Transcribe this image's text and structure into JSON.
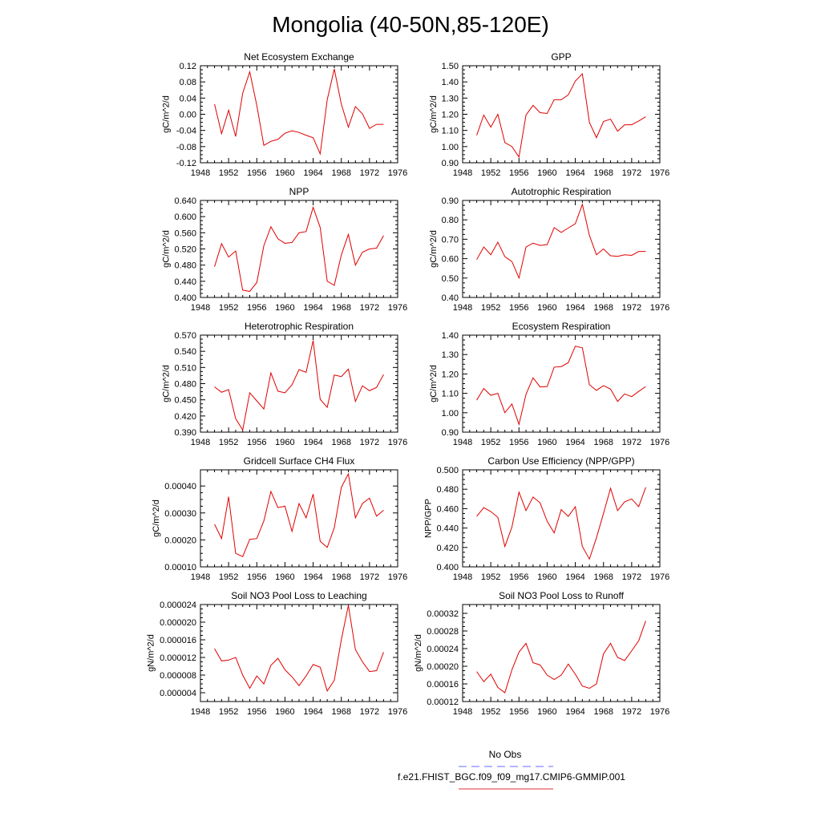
{
  "figure": {
    "title": "Mongolia (40-50N,85-120E)",
    "legend": [
      {
        "label": "No Obs",
        "color": "#6a6aff",
        "dashed": true
      },
      {
        "label": "f.e21.FHIST_BGC.f09_f09_mg17.CMIP6-GMMIP.001",
        "color": "#e03030",
        "dashed": false
      }
    ]
  },
  "chart_data": [
    {
      "type": "line",
      "title": "Net Ecosystem Exchange",
      "ylabel": "gC/m^2/d",
      "xlim": [
        1948,
        1976
      ],
      "xticks": [
        1948,
        1952,
        1956,
        1960,
        1964,
        1968,
        1972,
        1976
      ],
      "ylim": [
        -0.12,
        0.12
      ],
      "yticks": [
        "-0.12",
        "-0.08",
        "-0.04",
        "0.00",
        "0.04",
        "0.08",
        "0.12"
      ],
      "series": [
        {
          "color": "#e00000",
          "x": [
            1950,
            1951,
            1952,
            1953,
            1954,
            1955,
            1956,
            1957,
            1958,
            1959,
            1960,
            1961,
            1962,
            1963,
            1964,
            1965,
            1966,
            1967,
            1968,
            1969,
            1970,
            1971,
            1972,
            1973,
            1974
          ],
          "y": [
            0.025,
            -0.048,
            0.01,
            -0.055,
            0.052,
            0.105,
            0.022,
            -0.077,
            -0.067,
            -0.062,
            -0.047,
            -0.041,
            -0.045,
            -0.052,
            -0.058,
            -0.098,
            0.036,
            0.112,
            0.025,
            -0.032,
            0.019,
            0.001,
            -0.035,
            -0.025,
            -0.025
          ]
        }
      ]
    },
    {
      "type": "line",
      "title": "GPP",
      "ylabel": "gC/m^2/d",
      "xlim": [
        1948,
        1976
      ],
      "xticks": [
        1948,
        1952,
        1956,
        1960,
        1964,
        1968,
        1972,
        1976
      ],
      "ylim": [
        0.9,
        1.5
      ],
      "yticks": [
        "0.90",
        "1.00",
        "1.10",
        "1.20",
        "1.30",
        "1.40",
        "1.50"
      ],
      "series": [
        {
          "color": "#e00000",
          "x": [
            1950,
            1951,
            1952,
            1953,
            1954,
            1955,
            1956,
            1957,
            1958,
            1959,
            1960,
            1961,
            1962,
            1963,
            1964,
            1965,
            1966,
            1967,
            1968,
            1969,
            1970,
            1971,
            1972,
            1973,
            1974
          ],
          "y": [
            1.07,
            1.195,
            1.12,
            1.2,
            1.025,
            1.0,
            0.935,
            1.195,
            1.255,
            1.21,
            1.205,
            1.29,
            1.29,
            1.32,
            1.405,
            1.45,
            1.15,
            1.055,
            1.155,
            1.17,
            1.095,
            1.135,
            1.135,
            1.158,
            1.185
          ]
        }
      ]
    },
    {
      "type": "line",
      "title": "NPP",
      "ylabel": "gC/m^2/d",
      "xlim": [
        1948,
        1976
      ],
      "xticks": [
        1948,
        1952,
        1956,
        1960,
        1964,
        1968,
        1972,
        1976
      ],
      "ylim": [
        0.4,
        0.64
      ],
      "yticks": [
        "0.400",
        "0.440",
        "0.480",
        "0.520",
        "0.560",
        "0.600",
        "0.640"
      ],
      "series": [
        {
          "color": "#e00000",
          "x": [
            1950,
            1951,
            1952,
            1953,
            1954,
            1955,
            1956,
            1957,
            1958,
            1959,
            1960,
            1961,
            1962,
            1963,
            1964,
            1965,
            1966,
            1967,
            1968,
            1969,
            1970,
            1971,
            1972,
            1973,
            1974
          ],
          "y": [
            0.476,
            0.533,
            0.5,
            0.515,
            0.418,
            0.415,
            0.437,
            0.528,
            0.575,
            0.545,
            0.534,
            0.536,
            0.56,
            0.563,
            0.623,
            0.573,
            0.44,
            0.43,
            0.505,
            0.556,
            0.48,
            0.512,
            0.52,
            0.522,
            0.553
          ]
        }
      ]
    },
    {
      "type": "line",
      "title": "Autotrophic Respiration",
      "ylabel": "gC/m^2/d",
      "xlim": [
        1948,
        1976
      ],
      "xticks": [
        1948,
        1952,
        1956,
        1960,
        1964,
        1968,
        1972,
        1976
      ],
      "ylim": [
        0.4,
        0.9
      ],
      "yticks": [
        "0.40",
        "0.50",
        "0.60",
        "0.70",
        "0.80",
        "0.90"
      ],
      "series": [
        {
          "color": "#e00000",
          "x": [
            1950,
            1951,
            1952,
            1953,
            1954,
            1955,
            1956,
            1957,
            1958,
            1959,
            1960,
            1961,
            1962,
            1963,
            1964,
            1965,
            1966,
            1967,
            1968,
            1969,
            1970,
            1971,
            1972,
            1973,
            1974
          ],
          "y": [
            0.595,
            0.66,
            0.62,
            0.685,
            0.61,
            0.585,
            0.5,
            0.66,
            0.68,
            0.668,
            0.672,
            0.76,
            0.735,
            0.758,
            0.78,
            0.88,
            0.72,
            0.62,
            0.65,
            0.615,
            0.612,
            0.62,
            0.617,
            0.637,
            0.637
          ]
        }
      ]
    },
    {
      "type": "line",
      "title": "Heterotrophic Respiration",
      "ylabel": "gC/m^2/d",
      "xlim": [
        1948,
        1976
      ],
      "xticks": [
        1948,
        1952,
        1956,
        1960,
        1964,
        1968,
        1972,
        1976
      ],
      "ylim": [
        0.39,
        0.57
      ],
      "yticks": [
        "0.390",
        "0.420",
        "0.450",
        "0.480",
        "0.510",
        "0.540",
        "0.570"
      ],
      "series": [
        {
          "color": "#e00000",
          "x": [
            1950,
            1951,
            1952,
            1953,
            1954,
            1955,
            1956,
            1957,
            1958,
            1959,
            1960,
            1961,
            1962,
            1963,
            1964,
            1965,
            1966,
            1967,
            1968,
            1969,
            1970,
            1971,
            1972,
            1973,
            1974
          ],
          "y": [
            0.474,
            0.464,
            0.469,
            0.415,
            0.394,
            0.463,
            0.448,
            0.433,
            0.5,
            0.466,
            0.463,
            0.478,
            0.506,
            0.501,
            0.56,
            0.451,
            0.436,
            0.496,
            0.493,
            0.507,
            0.447,
            0.476,
            0.467,
            0.473,
            0.497
          ]
        }
      ]
    },
    {
      "type": "line",
      "title": "Ecosystem Respiration",
      "ylabel": "gC/m^2/d",
      "xlim": [
        1948,
        1976
      ],
      "xticks": [
        1948,
        1952,
        1956,
        1960,
        1964,
        1968,
        1972,
        1976
      ],
      "ylim": [
        0.9,
        1.4
      ],
      "yticks": [
        "0.90",
        "1.00",
        "1.10",
        "1.20",
        "1.30",
        "1.40"
      ],
      "series": [
        {
          "color": "#e00000",
          "x": [
            1950,
            1951,
            1952,
            1953,
            1954,
            1955,
            1956,
            1957,
            1958,
            1959,
            1960,
            1961,
            1962,
            1963,
            1964,
            1965,
            1966,
            1967,
            1968,
            1969,
            1970,
            1971,
            1972,
            1973,
            1974
          ],
          "y": [
            1.065,
            1.125,
            1.09,
            1.1,
            1.0,
            1.045,
            0.94,
            1.095,
            1.18,
            1.133,
            1.135,
            1.235,
            1.238,
            1.258,
            1.343,
            1.335,
            1.145,
            1.115,
            1.14,
            1.122,
            1.058,
            1.097,
            1.083,
            1.11,
            1.135
          ]
        }
      ]
    },
    {
      "type": "line",
      "title": "Gridcell Surface CH4 Flux",
      "ylabel": "gC/m^2/d",
      "xlim": [
        1948,
        1976
      ],
      "xticks": [
        1948,
        1952,
        1956,
        1960,
        1964,
        1968,
        1972,
        1976
      ],
      "ylim": [
        0.0001,
        0.00046
      ],
      "yticks": [
        "0.00010",
        "0.00020",
        "0.00030",
        "0.00040"
      ],
      "ytickvals": [
        0.0001,
        0.0002,
        0.0003,
        0.0004
      ],
      "series": [
        {
          "color": "#e00000",
          "x": [
            1950,
            1951,
            1952,
            1953,
            1954,
            1955,
            1956,
            1957,
            1958,
            1959,
            1960,
            1961,
            1962,
            1963,
            1964,
            1965,
            1966,
            1967,
            1968,
            1969,
            1970,
            1971,
            1972,
            1973,
            1974
          ],
          "y": [
            0.000258,
            0.000205,
            0.00036,
            0.00015,
            0.000138,
            0.000202,
            0.000205,
            0.00027,
            0.00038,
            0.00032,
            0.000325,
            0.000232,
            0.000335,
            0.000282,
            0.00037,
            0.000195,
            0.000172,
            0.000245,
            0.000395,
            0.000445,
            0.000282,
            0.000335,
            0.000355,
            0.000288,
            0.00031
          ]
        }
      ]
    },
    {
      "type": "line",
      "title": "Carbon Use Efficiency (NPP/GPP)",
      "ylabel": "NPP/GPP",
      "xlim": [
        1948,
        1976
      ],
      "xticks": [
        1948,
        1952,
        1956,
        1960,
        1964,
        1968,
        1972,
        1976
      ],
      "ylim": [
        0.4,
        0.5
      ],
      "yticks": [
        "0.400",
        "0.420",
        "0.440",
        "0.460",
        "0.480",
        "0.500"
      ],
      "series": [
        {
          "color": "#e00000",
          "x": [
            1950,
            1951,
            1952,
            1953,
            1954,
            1955,
            1956,
            1957,
            1958,
            1959,
            1960,
            1961,
            1962,
            1963,
            1964,
            1965,
            1966,
            1967,
            1968,
            1969,
            1970,
            1971,
            1972,
            1973,
            1974
          ],
          "y": [
            0.452,
            0.461,
            0.457,
            0.451,
            0.421,
            0.441,
            0.477,
            0.458,
            0.472,
            0.466,
            0.447,
            0.435,
            0.459,
            0.452,
            0.462,
            0.421,
            0.408,
            0.43,
            0.455,
            0.481,
            0.458,
            0.467,
            0.47,
            0.462,
            0.482
          ]
        }
      ]
    },
    {
      "type": "line",
      "title": "Soil NO3 Pool Loss to Leaching",
      "ylabel": "gN/m^2/d",
      "xlim": [
        1948,
        1976
      ],
      "xticks": [
        1948,
        1952,
        1956,
        1960,
        1964,
        1968,
        1972,
        1976
      ],
      "ylim": [
        2e-06,
        2.4e-05
      ],
      "yticks": [
        "0.000004",
        "0.000008",
        "0.000012",
        "0.000016",
        "0.000020",
        "0.000024"
      ],
      "ytickvals": [
        4e-06,
        8e-06,
        1.2e-05,
        1.6e-05,
        2e-05,
        2.4e-05
      ],
      "series": [
        {
          "color": "#e00000",
          "x": [
            1950,
            1951,
            1952,
            1953,
            1954,
            1955,
            1956,
            1957,
            1958,
            1959,
            1960,
            1961,
            1962,
            1963,
            1964,
            1965,
            1966,
            1967,
            1968,
            1969,
            1970,
            1971,
            1972,
            1973,
            1974
          ],
          "y": [
            1.4e-05,
            1.12e-05,
            1.14e-05,
            1.2e-05,
            8e-06,
            5e-06,
            7.8e-06,
            6e-06,
            1.02e-05,
            1.18e-05,
            9.2e-06,
            7.6e-06,
            5.6e-06,
            7.8e-06,
            1.04e-05,
            9.8e-06,
            4.4e-06,
            6.8e-06,
            1.6e-05,
            2.38e-05,
            1.38e-05,
            1.1e-05,
            8.8e-06,
            9e-06,
            1.32e-05
          ]
        }
      ]
    },
    {
      "type": "line",
      "title": "Soil NO3 Pool Loss to Runoff",
      "ylabel": "gN/m^2/d",
      "xlim": [
        1948,
        1976
      ],
      "xticks": [
        1948,
        1952,
        1956,
        1960,
        1964,
        1968,
        1972,
        1976
      ],
      "ylim": [
        0.00012,
        0.00034
      ],
      "yticks": [
        "0.00012",
        "0.00016",
        "0.00020",
        "0.00024",
        "0.00028",
        "0.00032"
      ],
      "ytickvals": [
        0.00012,
        0.00016,
        0.0002,
        0.00024,
        0.00028,
        0.00032
      ],
      "series": [
        {
          "color": "#e00000",
          "x": [
            1950,
            1951,
            1952,
            1953,
            1954,
            1955,
            1956,
            1957,
            1958,
            1959,
            1960,
            1961,
            1962,
            1963,
            1964,
            1965,
            1966,
            1967,
            1968,
            1969,
            1970,
            1971,
            1972,
            1973,
            1974
          ],
          "y": [
            0.000188,
            0.000165,
            0.000182,
            0.000152,
            0.00014,
            0.000192,
            0.000232,
            0.000252,
            0.000208,
            0.000203,
            0.00018,
            0.00017,
            0.00018,
            0.000205,
            0.000182,
            0.000155,
            0.00015,
            0.00016,
            0.000228,
            0.000252,
            0.00022,
            0.000213,
            0.000235,
            0.000258,
            0.000303
          ]
        }
      ]
    }
  ]
}
